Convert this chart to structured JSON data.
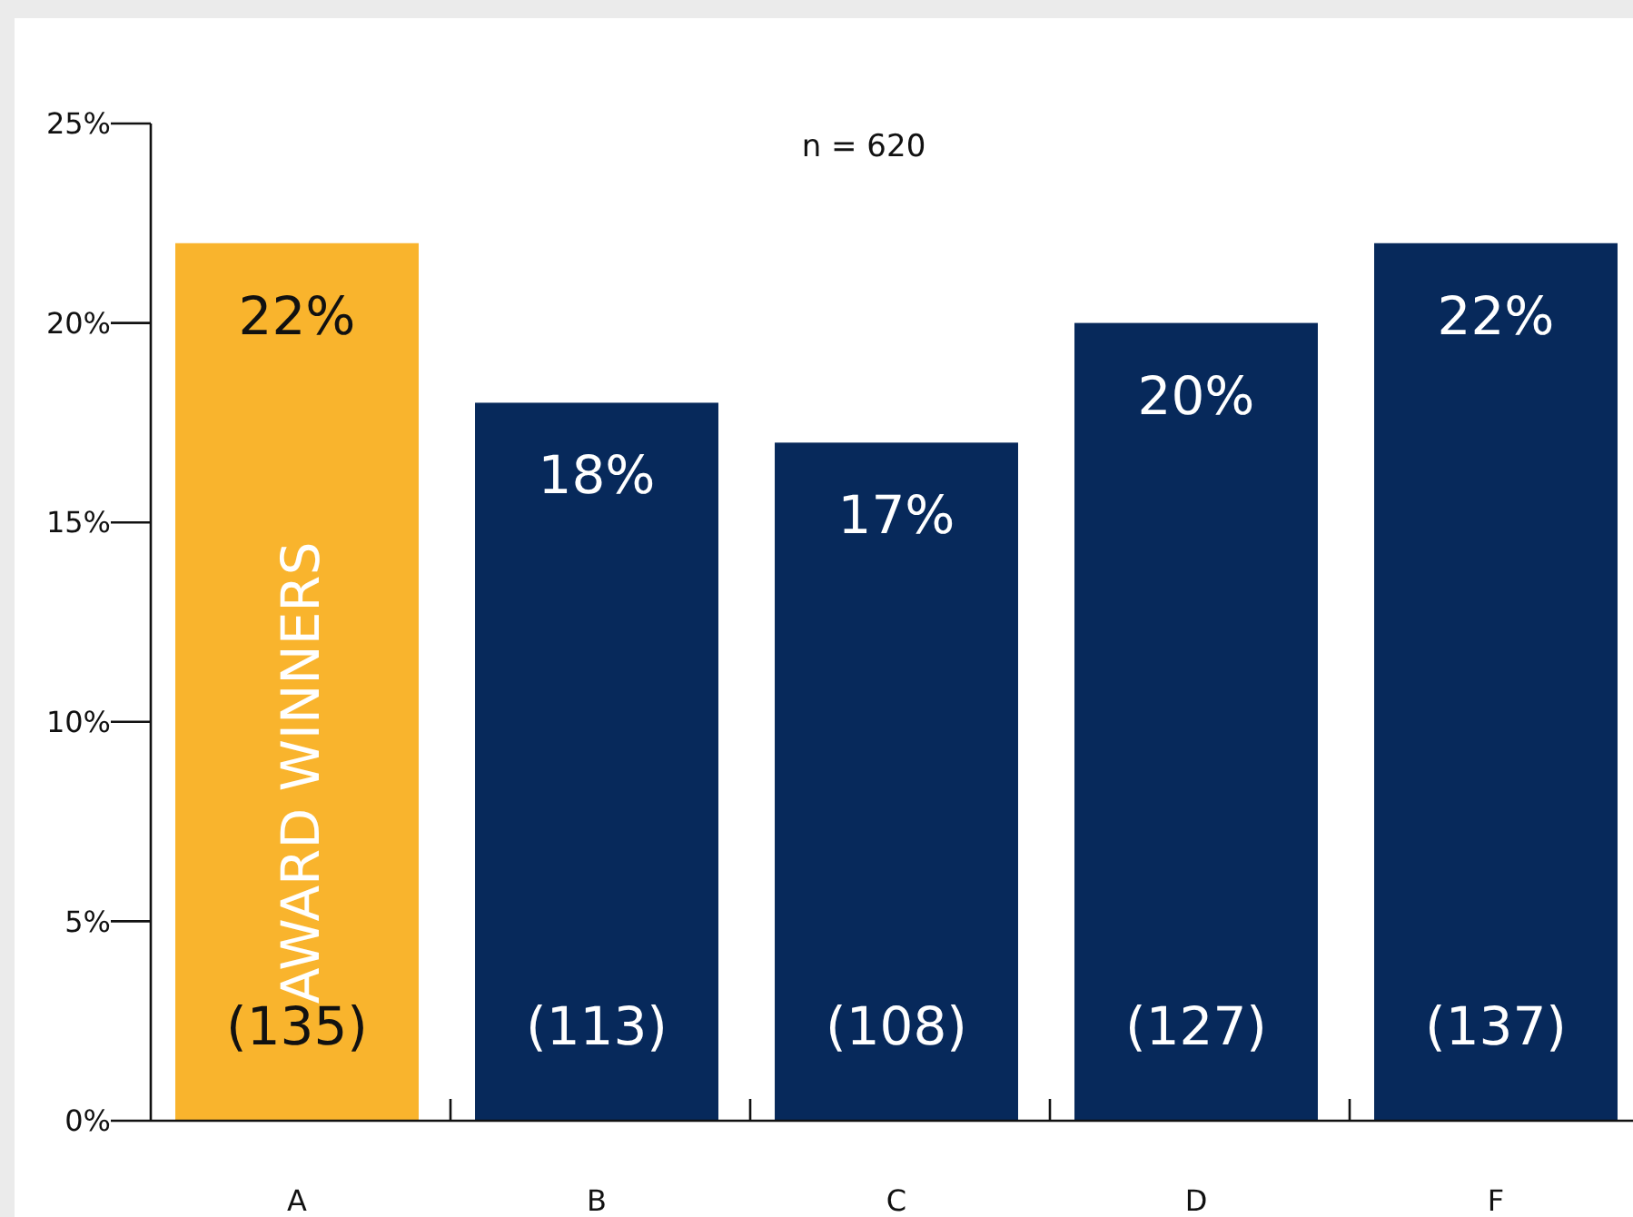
{
  "chart_data": {
    "type": "bar",
    "categories": [
      "A",
      "B",
      "C",
      "D",
      "F"
    ],
    "values": [
      22,
      18,
      17,
      20,
      22
    ],
    "colors": [
      "#f9b42d",
      "#07295b",
      "#07295b",
      "#07295b",
      "#07295b"
    ],
    "value_labels": [
      "22%",
      "18%",
      "17%",
      "20%",
      "22%"
    ],
    "ylim": [
      0,
      25
    ],
    "yticks": [
      {
        "value": 0,
        "label": "0%"
      },
      {
        "value": 5,
        "label": "5%"
      },
      {
        "value": 10,
        "label": "10%"
      },
      {
        "value": 15,
        "label": "15%"
      },
      {
        "value": 20,
        "label": "20%"
      },
      {
        "value": 25,
        "label": "25%"
      }
    ],
    "grid": false,
    "annotations": [
      "n = 620",
      "AWARD WINNERS",
      "(135)",
      "(113)",
      "(108)",
      "(127)",
      "(137)"
    ]
  }
}
